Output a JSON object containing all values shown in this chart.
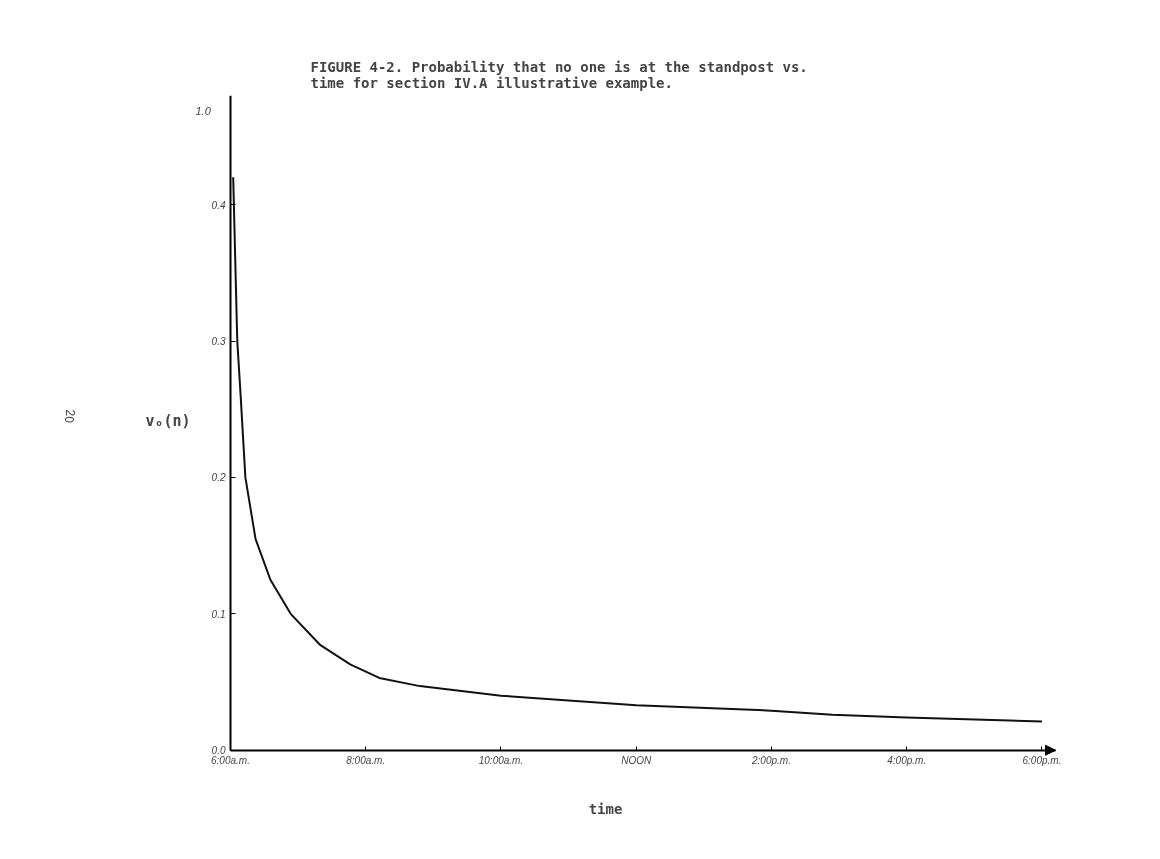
{
  "chart_data": {
    "type": "line",
    "title": "FIGURE 4-2. Probability that no one is at the standpost vs.\n           time for section IV.A illustrative example.",
    "xlabel": "time",
    "ylabel": "vₒ(n)",
    "x": [
      6.04,
      6.07,
      6.1,
      6.15,
      6.22,
      6.37,
      6.59,
      6.89,
      7.33,
      7.77,
      8.2,
      8.8,
      10,
      12,
      14,
      14.9,
      16,
      18
    ],
    "values": [
      0.42,
      0.36,
      0.3,
      0.26,
      0.2,
      0.155,
      0.125,
      0.1,
      0.077,
      0.063,
      0.053,
      0.047,
      0.04,
      0.033,
      0.029,
      0.026,
      0.024,
      0.021
    ],
    "color": "#111111",
    "line_style": "solid",
    "marker": "none",
    "grid": false,
    "xlim": [
      6,
      18.2
    ],
    "ylim": [
      0,
      0.48
    ],
    "xticks": [
      {
        "value": 6,
        "label": "6:00a.m."
      },
      {
        "value": 8,
        "label": "8:00a.m."
      },
      {
        "value": 10,
        "label": "10:00a.m."
      },
      {
        "value": 12,
        "label": "NOON"
      },
      {
        "value": 14,
        "label": "2:00p.m."
      },
      {
        "value": 16,
        "label": "4:00p.m."
      },
      {
        "value": 18,
        "label": "6:00p.m."
      }
    ],
    "yticks": [
      {
        "value": 0,
        "label": "0.0"
      },
      0.1,
      0.2,
      0.3,
      0.4
    ],
    "annotations": [
      "1.0",
      "20"
    ]
  }
}
